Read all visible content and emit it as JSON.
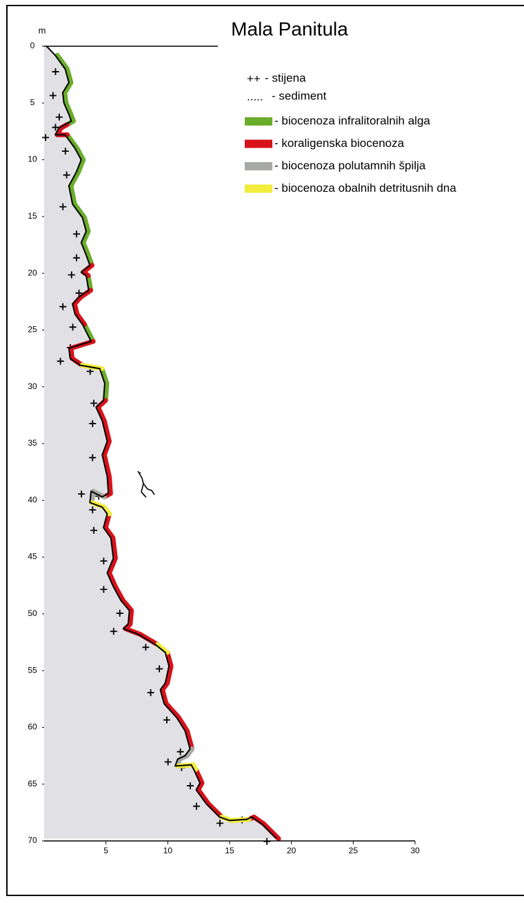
{
  "chart_data": {
    "type": "profile",
    "title": "Mala Panitula",
    "y_label": "m",
    "xlim": [
      0,
      30
    ],
    "ylim": [
      0,
      70
    ],
    "xticks": [
      5,
      10,
      15,
      20,
      25,
      30
    ],
    "yticks": [
      0,
      5,
      10,
      15,
      20,
      25,
      30,
      35,
      40,
      45,
      50,
      55,
      60,
      65,
      70
    ],
    "profile": {
      "x": [
        0.2,
        0.9,
        1.7,
        2.0,
        1.5,
        1.6,
        2.0,
        2.2,
        1.7,
        1.2,
        0.9,
        1.7,
        2.5,
        3.0,
        2.6,
        2.0,
        2.3,
        3.1,
        3.4,
        3.0,
        3.4,
        3.7,
        3.0,
        3.4,
        3.6,
        2.8,
        2.3,
        2.5,
        3.1,
        3.8,
        2.9,
        2.0,
        2.1,
        2.9,
        4.5,
        4.9,
        4.8,
        4.2,
        4.7,
        5.1,
        4.7,
        5.1,
        5.2,
        4.7,
        3.8,
        3.7,
        4.7,
        5.1,
        4.8,
        5.4,
        5.6,
        5.1,
        5.6,
        6.2,
        6.9,
        6.8,
        6.4,
        7.6,
        9.0,
        9.8,
        10.1,
        9.8,
        9.4,
        9.7,
        10.7,
        11.4,
        11.8,
        11.4,
        10.8,
        10.6,
        11.9,
        12.1,
        12.6,
        12.3,
        13.1,
        14.2,
        15.0,
        16.4,
        16.8,
        17.6,
        18.8
      ],
      "y": [
        0,
        0.8,
        2,
        3.2,
        4.1,
        5.0,
        6.0,
        6.6,
        6.9,
        7.2,
        7.8,
        7.8,
        9,
        10,
        11.1,
        12.3,
        13.9,
        15.1,
        16.3,
        17.3,
        18.4,
        19.3,
        19.9,
        20.2,
        21.5,
        22.1,
        22.7,
        23.6,
        24.5,
        26,
        26.3,
        26.6,
        27.5,
        28.1,
        28.4,
        29.7,
        31.2,
        31.8,
        33,
        34.8,
        36,
        37.9,
        39.4,
        39.7,
        39.2,
        40.2,
        40.6,
        41.2,
        42.4,
        43.3,
        45.1,
        46.4,
        47.6,
        48.8,
        49.7,
        50.9,
        51.3,
        51.8,
        52.7,
        53.4,
        54.6,
        56.1,
        56.7,
        57.9,
        59.1,
        60.3,
        61.9,
        62.5,
        62.8,
        63.4,
        63.3,
        63.7,
        64.9,
        65.5,
        66.7,
        67.9,
        68.2,
        68.1,
        67.9,
        68.5,
        69.8
      ]
    },
    "symbol_legend": [
      {
        "symbol": "++",
        "label": "- stijena"
      },
      {
        "symbol": ".....",
        "label": "- sediment"
      }
    ],
    "series": [
      {
        "name": "- biocenoza infralitoralnih alga",
        "color": "#6aad2a",
        "segments": [
          {
            "x": [
              0.9,
              1.7,
              2.0,
              1.5,
              1.6,
              2.0,
              2.2,
              1.7
            ],
            "y": [
              0.8,
              2,
              3.2,
              4.1,
              5.0,
              6.0,
              6.6,
              6.9
            ]
          },
          {
            "x": [
              1.7,
              2.5,
              3.0,
              2.6,
              2.0,
              2.3,
              3.1,
              3.4,
              3.0,
              3.4,
              3.7
            ],
            "y": [
              7.8,
              9,
              10,
              11.1,
              12.3,
              13.9,
              15.1,
              16.3,
              17.3,
              18.4,
              19.3
            ]
          },
          {
            "x": [
              3.4,
              3.6
            ],
            "y": [
              20.2,
              21.5
            ]
          },
          {
            "x": [
              3.1,
              3.8
            ],
            "y": [
              24.5,
              26
            ]
          },
          {
            "x": [
              4.5,
              4.9,
              4.8
            ],
            "y": [
              28.4,
              29.7,
              31.2
            ]
          }
        ]
      },
      {
        "name": "- koraligenska biocenoza",
        "color": "#d7121b",
        "segments": [
          {
            "x": [
              1.7,
              1.2,
              0.9,
              1.7
            ],
            "y": [
              6.9,
              7.2,
              7.8,
              7.8
            ]
          },
          {
            "x": [
              3.7,
              3.0,
              3.4
            ],
            "y": [
              19.3,
              19.9,
              20.2
            ]
          },
          {
            "x": [
              3.6,
              2.8,
              2.3,
              2.5,
              3.1
            ],
            "y": [
              21.5,
              22.1,
              22.7,
              23.6,
              24.5
            ]
          },
          {
            "x": [
              3.8,
              2.9,
              2.0,
              2.1,
              2.9
            ],
            "y": [
              26,
              26.3,
              26.6,
              27.5,
              28.1
            ]
          },
          {
            "x": [
              4.8,
              4.2,
              4.7,
              5.1,
              4.7,
              5.1,
              5.2,
              4.7
            ],
            "y": [
              31.2,
              31.8,
              33,
              34.8,
              36,
              37.9,
              39.4,
              39.7
            ]
          },
          {
            "x": [
              5.1,
              4.8,
              5.4,
              5.6,
              5.1,
              5.6,
              6.2,
              6.9,
              6.8,
              6.4,
              7.6,
              9.0
            ],
            "y": [
              41.2,
              42.4,
              43.3,
              45.1,
              46.4,
              47.6,
              48.8,
              49.7,
              50.9,
              51.3,
              51.8,
              52.7
            ]
          },
          {
            "x": [
              9.8,
              10.1,
              9.8,
              9.4,
              9.7,
              10.7,
              11.4,
              11.8
            ],
            "y": [
              53.4,
              54.6,
              56.1,
              56.7,
              57.9,
              59.1,
              60.3,
              61.9
            ]
          },
          {
            "x": [
              12.1,
              12.6,
              12.3,
              13.1,
              14.2
            ],
            "y": [
              63.7,
              64.9,
              65.5,
              66.7,
              67.9
            ]
          },
          {
            "x": [
              16.4,
              16.8,
              17.6,
              18.8
            ],
            "y": [
              68.1,
              67.9,
              68.5,
              69.8
            ]
          }
        ]
      },
      {
        "name": "- biocenoza polutamnih špilja",
        "color": "#a7aaa4",
        "segments": [
          {
            "x": [
              4.7,
              3.8,
              3.7
            ],
            "y": [
              39.7,
              39.2,
              40.2
            ]
          },
          {
            "x": [
              11.8,
              11.4,
              10.8,
              10.6
            ],
            "y": [
              61.9,
              62.5,
              62.8,
              63.4
            ]
          }
        ]
      },
      {
        "name": "- biocenoza obalnih detritusnih dna",
        "color": "#f2ec3c",
        "segments": [
          {
            "x": [
              2.9,
              4.5
            ],
            "y": [
              28.1,
              28.4
            ]
          },
          {
            "x": [
              3.7,
              4.7,
              5.1
            ],
            "y": [
              40.2,
              40.6,
              41.2
            ]
          },
          {
            "x": [
              9.0,
              9.8
            ],
            "y": [
              52.7,
              53.4
            ]
          },
          {
            "x": [
              10.6,
              11.9,
              12.1
            ],
            "y": [
              63.4,
              63.3,
              63.7
            ]
          },
          {
            "x": [
              14.2,
              15.0,
              16.4
            ],
            "y": [
              67.9,
              68.2,
              68.1
            ]
          }
        ]
      }
    ]
  }
}
